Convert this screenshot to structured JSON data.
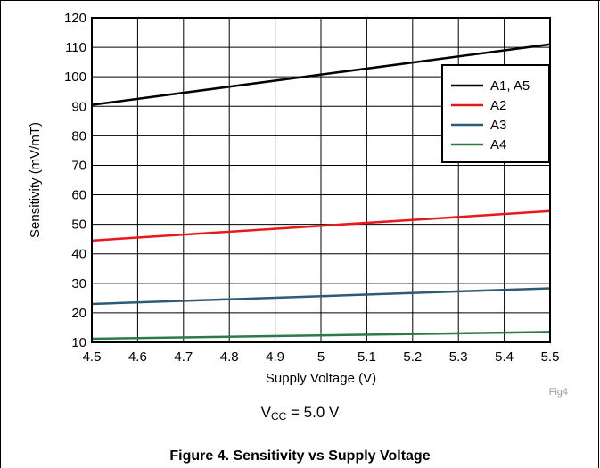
{
  "chart_data": {
    "type": "line",
    "xlabel": "Supply Voltage (V)",
    "ylabel": "Sensitivity (mV/mT)",
    "xlim": [
      4.5,
      5.5
    ],
    "ylim": [
      10,
      120
    ],
    "xticks": [
      "4.5",
      "4.6",
      "4.7",
      "4.8",
      "4.9",
      "5",
      "5.1",
      "5.2",
      "5.3",
      "5.4",
      "5.5"
    ],
    "yticks": [
      "10",
      "20",
      "30",
      "40",
      "50",
      "60",
      "70",
      "80",
      "90",
      "100",
      "110",
      "120"
    ],
    "grid": true,
    "legend_position": "top-right",
    "series": [
      {
        "name": "A1, A5",
        "color": "#000000",
        "x": [
          4.5,
          5.5
        ],
        "y": [
          90.5,
          111.0
        ]
      },
      {
        "name": "A2",
        "color": "#e8191c",
        "x": [
          4.5,
          5.5
        ],
        "y": [
          44.5,
          54.5
        ]
      },
      {
        "name": "A3",
        "color": "#2e5a78",
        "x": [
          4.5,
          5.5
        ],
        "y": [
          23.0,
          28.3
        ]
      },
      {
        "name": "A4",
        "color": "#2c7a4a",
        "x": [
          4.5,
          5.5
        ],
        "y": [
          11.2,
          13.5
        ]
      }
    ]
  },
  "source_tag": "Fig4",
  "condition": {
    "prefix": "V",
    "subscript": "CC",
    "suffix": " = 5.0 V"
  },
  "caption": "Figure 4. Sensitivity vs Supply Voltage"
}
